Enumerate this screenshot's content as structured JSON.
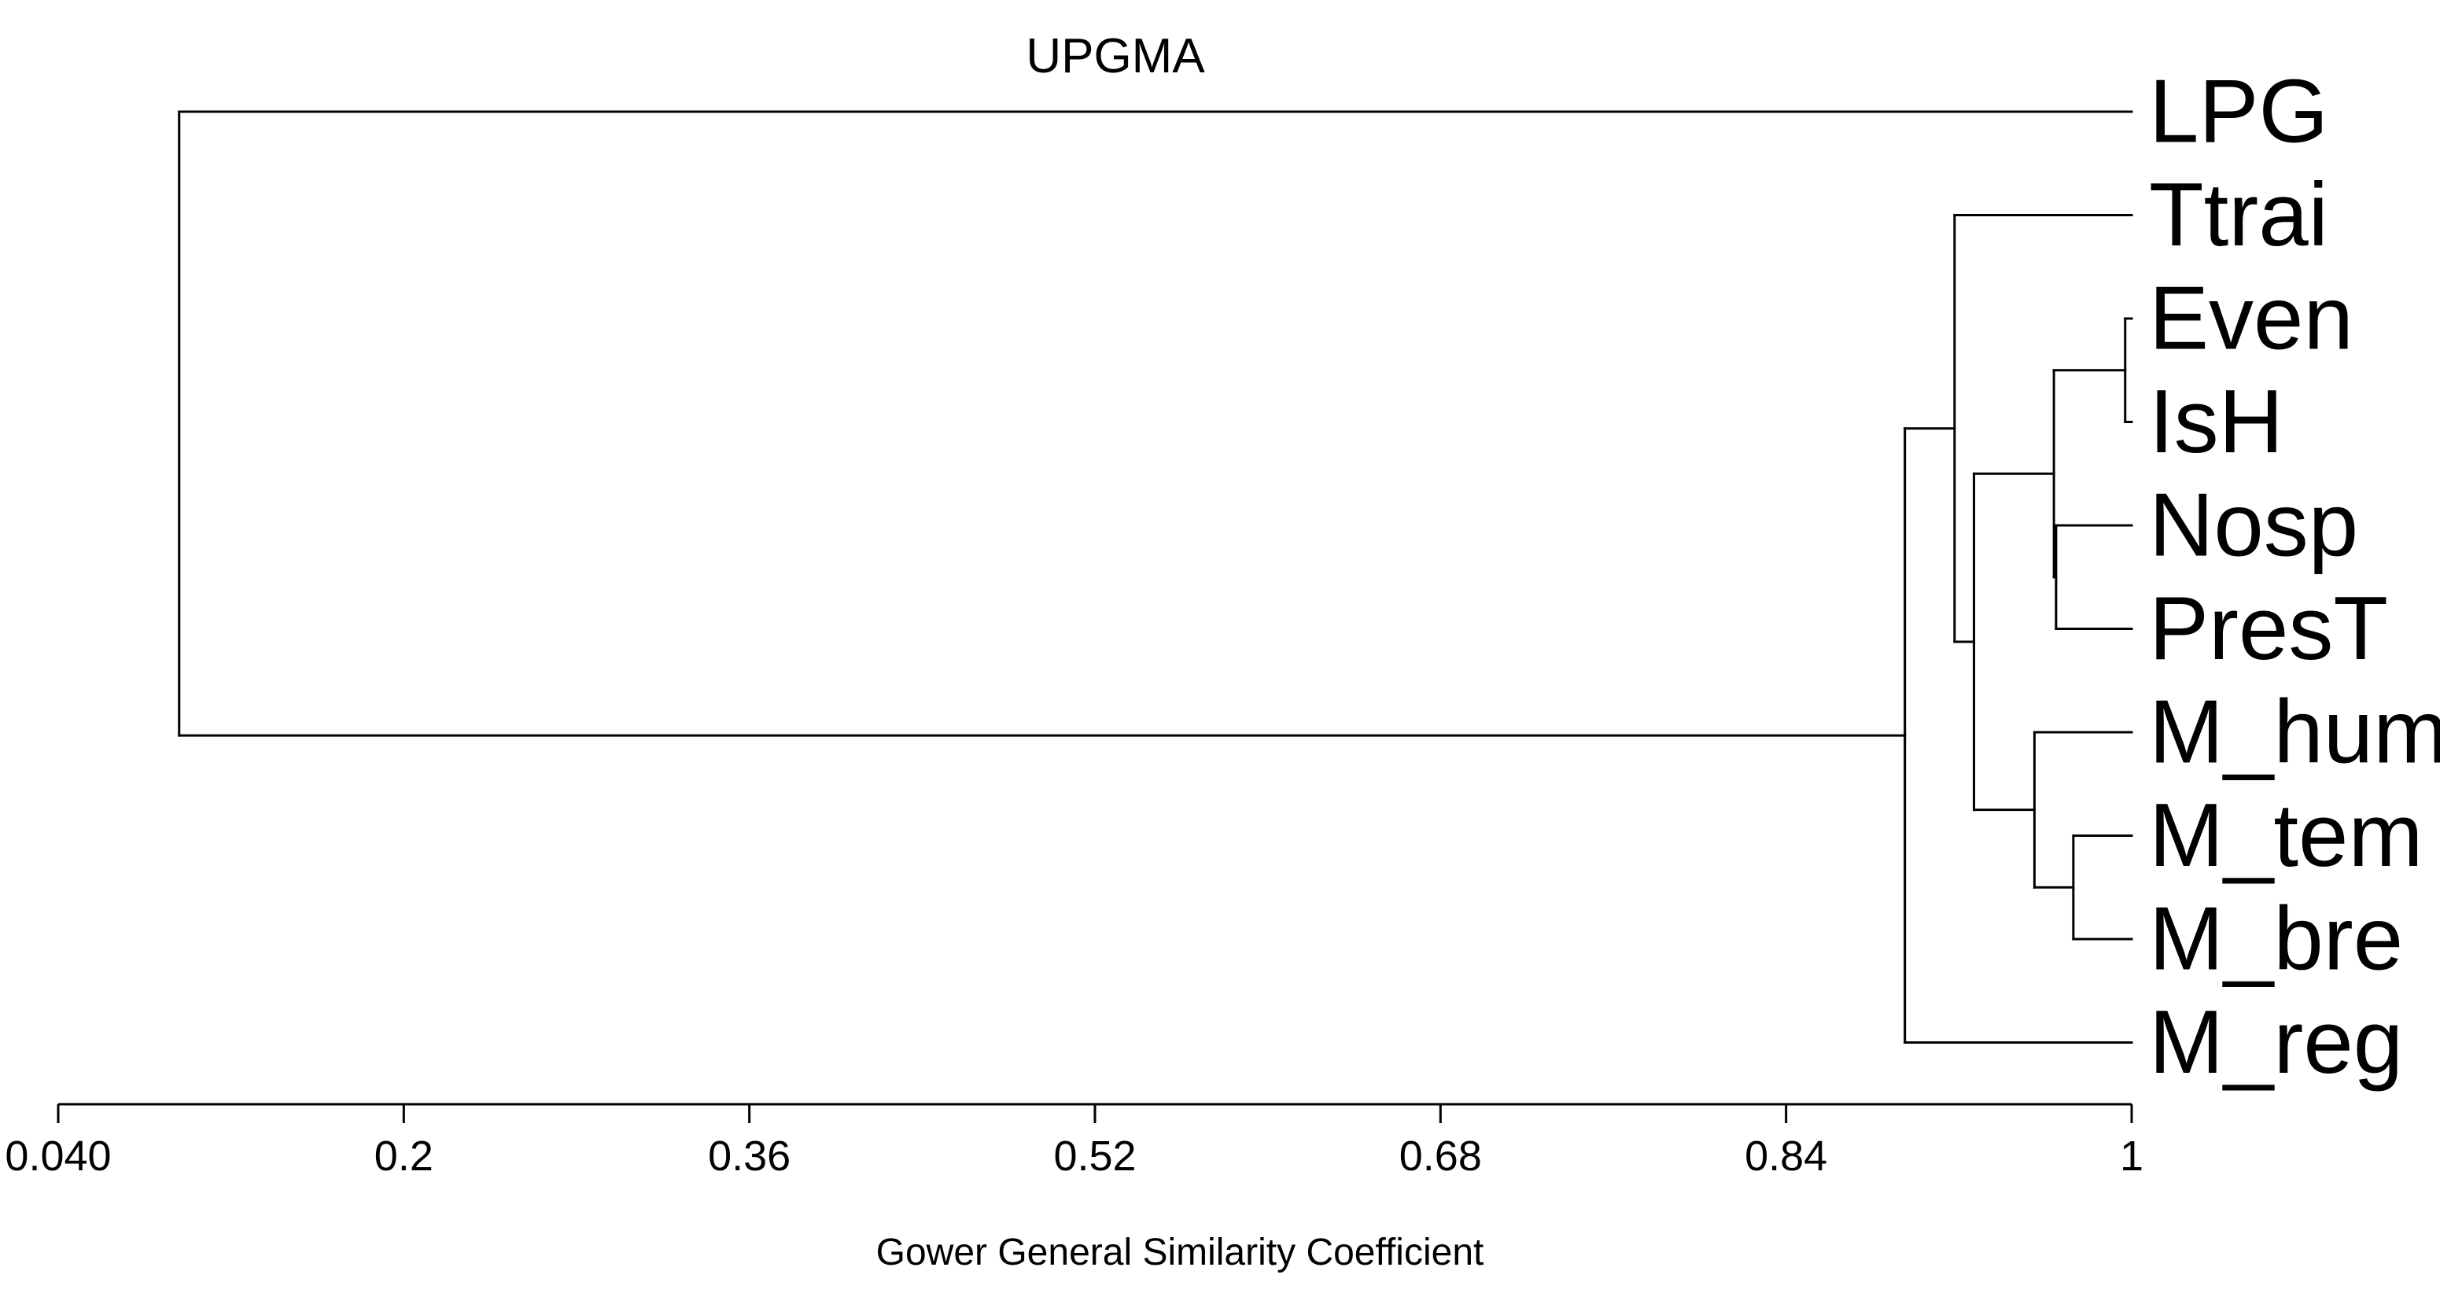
{
  "chart_data": {
    "type": "dendrogram",
    "title": "UPGMA",
    "xlabel": "Gower General Similarity Coefficient",
    "ylabel": "",
    "xlim": [
      0.04,
      1
    ],
    "x_tick_labels": [
      "0.040",
      "0.2",
      "0.36",
      "0.52",
      "0.68",
      "0.84",
      "1"
    ],
    "x_tick_values": [
      0.04,
      0.2,
      0.36,
      0.52,
      0.68,
      0.84,
      1
    ],
    "leaves": [
      "LPG",
      "Ttrai",
      "Even",
      "IsH",
      "Nosp",
      "PresT",
      "M_hum",
      "M_tem",
      "M_bre",
      "M_reg"
    ],
    "merges": [
      {
        "left": "Even",
        "right": "IsH",
        "similarity": 0.997
      },
      {
        "left": "M_tem",
        "right": "M_bre",
        "similarity": 0.973
      },
      {
        "left": "Nosp",
        "right": "PresT",
        "similarity": 0.965
      },
      {
        "left": "Even+IsH",
        "right": "Nosp+PresT",
        "similarity": 0.964
      },
      {
        "left": "M_hum",
        "right": "M_tem+M_bre",
        "similarity": 0.955
      },
      {
        "left": "Even+IsH+Nosp+PresT",
        "right": "M_hum+M_tem+M_bre",
        "similarity": 0.927
      },
      {
        "left": "Ttrai",
        "right": "Even..M_bre",
        "similarity": 0.918
      },
      {
        "left": "Ttrai..M_bre",
        "right": "M_reg",
        "similarity": 0.895
      },
      {
        "left": "LPG",
        "right": "Ttrai..M_reg",
        "similarity": 0.096
      }
    ]
  }
}
